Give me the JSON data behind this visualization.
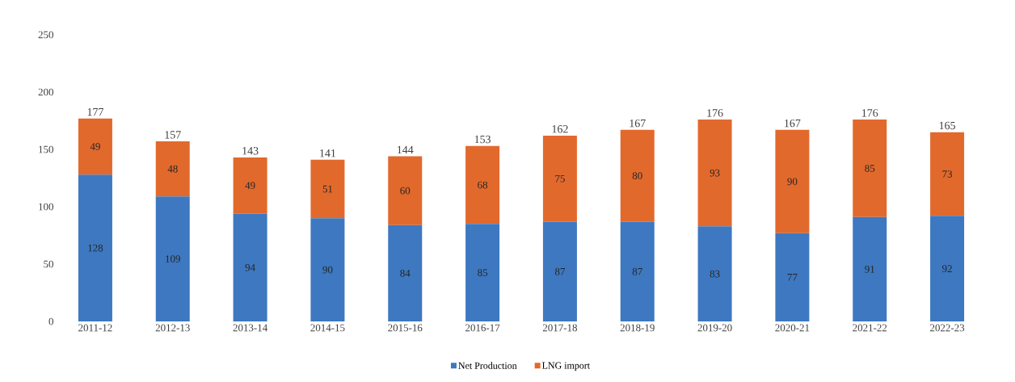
{
  "chart_data": {
    "type": "bar",
    "stacked": true,
    "categories": [
      "2011-12",
      "2012-13",
      "2013-14",
      "2014-15",
      "2015-16",
      "2016-17",
      "2017-18",
      "2018-19",
      "2019-20",
      "2020-21",
      "2021-22",
      "2022-23"
    ],
    "series": [
      {
        "name": "Net Production",
        "color": "#3d78c1",
        "values": [
          128,
          109,
          94,
          90,
          84,
          85,
          87,
          87,
          83,
          77,
          91,
          92
        ],
        "value_labels": [
          "128",
          "109",
          "94",
          "90",
          "84",
          "85",
          "87",
          "87",
          "83",
          "77",
          "91",
          "92"
        ]
      },
      {
        "name": "LNG import",
        "color": "#e2692c",
        "values": [
          49,
          48,
          49,
          51,
          60,
          68,
          75,
          80,
          93,
          90,
          85,
          73
        ],
        "value_labels": [
          "49",
          "48",
          "49",
          "51",
          "60",
          "68",
          "75",
          "80",
          "93",
          "90",
          "85",
          "73"
        ]
      }
    ],
    "totals": [
      "177",
      "157",
      "143",
      "141",
      "144",
      "153",
      "162",
      "167",
      "176",
      "167",
      "176",
      "165"
    ],
    "ylim": [
      0,
      250
    ],
    "yticks": [
      0,
      50,
      100,
      150,
      200,
      250
    ],
    "grid": false,
    "legend": "bottom"
  }
}
